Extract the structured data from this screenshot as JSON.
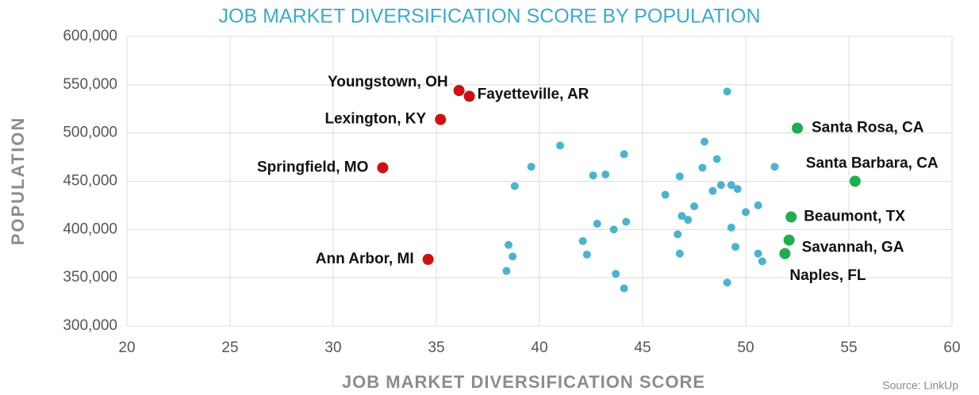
{
  "chart_data": {
    "type": "scatter",
    "title": "JOB MARKET DIVERSIFICATION SCORE BY POPULATION",
    "x_label": "JOB MARKET DIVERSIFICATION SCORE",
    "y_label": "POPULATION",
    "source": "Source: LinkUp",
    "xlim": [
      20,
      60
    ],
    "xticks": [
      20,
      25,
      30,
      35,
      40,
      45,
      50,
      55,
      60
    ],
    "ylim": [
      300000,
      600000
    ],
    "yticks": [
      {
        "value": 300000,
        "label": "300,000"
      },
      {
        "value": 350000,
        "label": "350,000"
      },
      {
        "value": 400000,
        "label": "400,000"
      },
      {
        "value": 450000,
        "label": "450,000"
      },
      {
        "value": 500000,
        "label": "500,000"
      },
      {
        "value": 550000,
        "label": "550,000"
      },
      {
        "value": 600000,
        "label": "600,000"
      }
    ],
    "grid": true,
    "series": [
      {
        "color": "#4bb3d0",
        "x": [
          49.1,
          41.0,
          48.0,
          44.1,
          48.6,
          39.6,
          47.9,
          51.4,
          43.2,
          42.6,
          46.8,
          38.8,
          48.8,
          49.3,
          49.6,
          48.4,
          46.1,
          47.5,
          50.6,
          50.0,
          46.9,
          47.2,
          44.2,
          42.8,
          49.3,
          43.6,
          46.7,
          42.1,
          38.5,
          49.5,
          38.7,
          42.3,
          46.8,
          50.6,
          50.8,
          38.4,
          43.7,
          49.1,
          44.1
        ],
        "values": [
          543000,
          487000,
          491000,
          478000,
          473000,
          465000,
          464000,
          465000,
          457000,
          456000,
          455000,
          445000,
          446000,
          446000,
          442000,
          440000,
          436000,
          424000,
          425000,
          418000,
          414000,
          410000,
          408000,
          406000,
          402000,
          400000,
          395000,
          388000,
          384000,
          382000,
          372000,
          374000,
          375000,
          375000,
          367000,
          357000,
          354000,
          345000,
          339000
        ]
      },
      {
        "color": "#cc1111",
        "x": [
          36.1,
          36.6,
          35.2,
          32.4,
          34.6
        ],
        "values": [
          544000,
          538000,
          514000,
          464000,
          369000
        ],
        "labels": [
          "Youngstown, OH",
          "Fayetteville, AR",
          "Lexington, KY",
          "Springfield, MO",
          "Ann Arbor, MI"
        ]
      },
      {
        "color": "#1fae4f",
        "x": [
          52.5,
          55.3,
          52.2,
          52.1,
          51.9
        ],
        "values": [
          505000,
          450000,
          413000,
          389000,
          375000
        ],
        "labels": [
          "Santa Rosa, CA",
          "Santa Barbara, CA",
          "Beaumont, TX",
          "Savannah, GA",
          "Naples, FL"
        ]
      }
    ]
  }
}
